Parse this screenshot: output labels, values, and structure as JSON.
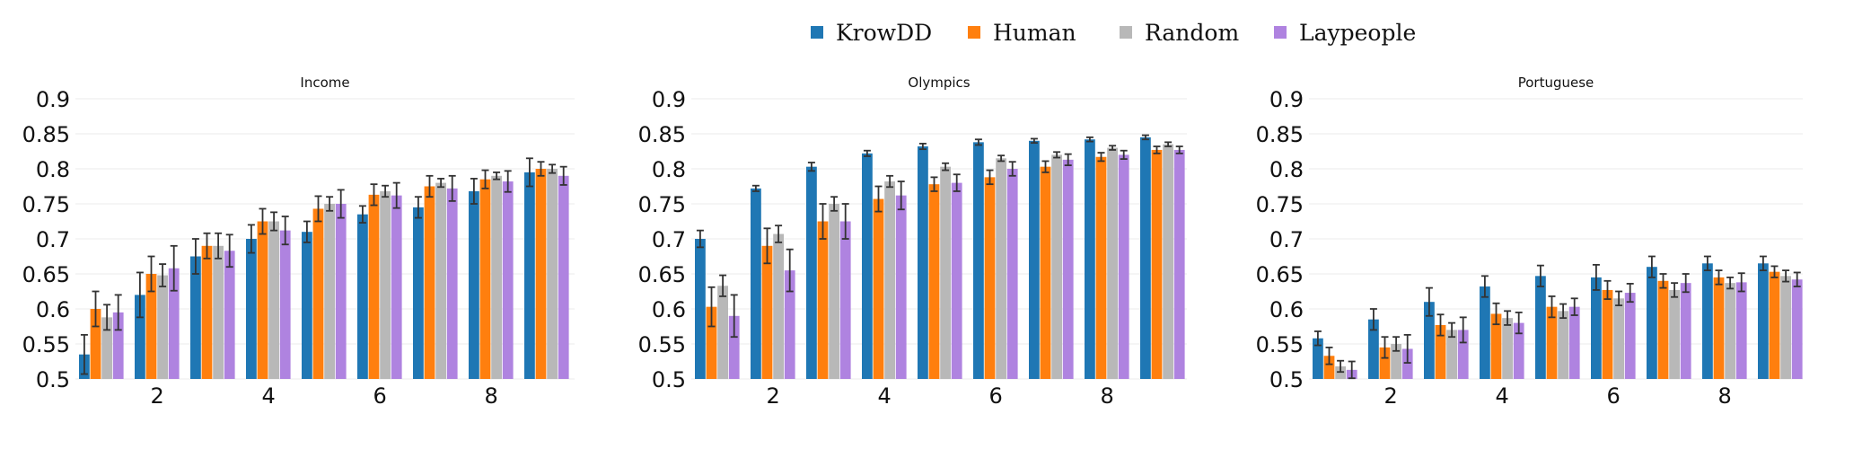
{
  "legend": {
    "entries": [
      {
        "name": "KrowDD",
        "color": "#1f77b4"
      },
      {
        "name": "Human",
        "color": "#ff7f0e"
      },
      {
        "name": "Random",
        "color": "#b8b8b8"
      },
      {
        "name": "Laypeople",
        "color": "#af83e0"
      }
    ],
    "placement": "top-center"
  },
  "chart_data": [
    {
      "type": "bar",
      "title": "Income",
      "xlabel": "",
      "ylabel": "",
      "ylim": [
        0.5,
        0.9
      ],
      "yticks": [
        "0.5",
        "0.55",
        "0.6",
        "0.65",
        "0.7",
        "0.75",
        "0.8",
        "0.85",
        "0.9"
      ],
      "xticks": [
        "2",
        "4",
        "6",
        "8"
      ],
      "grid": true,
      "categories": [
        1,
        2,
        3,
        4,
        5,
        6,
        7,
        8,
        9
      ],
      "series": [
        {
          "name": "KrowDD",
          "values": [
            0.535,
            0.62,
            0.675,
            0.7,
            0.71,
            0.735,
            0.745,
            0.768,
            0.795
          ],
          "errors": [
            0.028,
            0.032,
            0.025,
            0.02,
            0.015,
            0.012,
            0.015,
            0.018,
            0.02
          ]
        },
        {
          "name": "Human",
          "values": [
            0.6,
            0.65,
            0.69,
            0.725,
            0.743,
            0.763,
            0.775,
            0.785,
            0.8
          ],
          "errors": [
            0.025,
            0.025,
            0.018,
            0.018,
            0.018,
            0.015,
            0.015,
            0.013,
            0.01
          ]
        },
        {
          "name": "Random",
          "values": [
            0.588,
            0.648,
            0.69,
            0.725,
            0.75,
            0.768,
            0.78,
            0.79,
            0.8
          ],
          "errors": [
            0.018,
            0.016,
            0.018,
            0.013,
            0.01,
            0.008,
            0.006,
            0.005,
            0.006
          ]
        },
        {
          "name": "Laypeople",
          "values": [
            0.595,
            0.658,
            0.683,
            0.712,
            0.75,
            0.762,
            0.772,
            0.782,
            0.79
          ],
          "errors": [
            0.025,
            0.032,
            0.023,
            0.02,
            0.02,
            0.018,
            0.018,
            0.015,
            0.013
          ]
        }
      ]
    },
    {
      "type": "bar",
      "title": "Olympics",
      "xlabel": "",
      "ylabel": "",
      "ylim": [
        0.5,
        0.9
      ],
      "yticks": [
        "0.5",
        "0.55",
        "0.6",
        "0.65",
        "0.7",
        "0.75",
        "0.8",
        "0.85",
        "0.9"
      ],
      "xticks": [
        "2",
        "4",
        "6",
        "8"
      ],
      "grid": true,
      "categories": [
        1,
        2,
        3,
        4,
        5,
        6,
        7,
        8,
        9
      ],
      "series": [
        {
          "name": "KrowDD",
          "values": [
            0.7,
            0.772,
            0.803,
            0.822,
            0.832,
            0.838,
            0.84,
            0.842,
            0.845
          ],
          "errors": [
            0.012,
            0.004,
            0.006,
            0.004,
            0.004,
            0.004,
            0.003,
            0.003,
            0.003
          ]
        },
        {
          "name": "Human",
          "values": [
            0.603,
            0.69,
            0.725,
            0.757,
            0.778,
            0.788,
            0.803,
            0.817,
            0.827
          ],
          "errors": [
            0.028,
            0.025,
            0.025,
            0.018,
            0.01,
            0.01,
            0.008,
            0.006,
            0.005
          ]
        },
        {
          "name": "Random",
          "values": [
            0.633,
            0.707,
            0.75,
            0.782,
            0.803,
            0.815,
            0.82,
            0.83,
            0.835
          ],
          "errors": [
            0.015,
            0.012,
            0.01,
            0.008,
            0.005,
            0.004,
            0.004,
            0.003,
            0.003
          ]
        },
        {
          "name": "Laypeople",
          "values": [
            0.59,
            0.655,
            0.725,
            0.762,
            0.78,
            0.8,
            0.813,
            0.82,
            0.827
          ],
          "errors": [
            0.03,
            0.03,
            0.025,
            0.02,
            0.012,
            0.01,
            0.008,
            0.006,
            0.005
          ]
        }
      ]
    },
    {
      "type": "bar",
      "title": "Portuguese",
      "xlabel": "",
      "ylabel": "",
      "ylim": [
        0.5,
        0.9
      ],
      "yticks": [
        "0.5",
        "0.55",
        "0.6",
        "0.65",
        "0.7",
        "0.75",
        "0.8",
        "0.85",
        "0.9"
      ],
      "xticks": [
        "2",
        "4",
        "6",
        "8"
      ],
      "grid": true,
      "categories": [
        1,
        2,
        3,
        4,
        5,
        6,
        7,
        8,
        9
      ],
      "series": [
        {
          "name": "KrowDD",
          "values": [
            0.558,
            0.585,
            0.61,
            0.632,
            0.647,
            0.645,
            0.66,
            0.665,
            0.665
          ],
          "errors": [
            0.01,
            0.015,
            0.02,
            0.015,
            0.015,
            0.018,
            0.015,
            0.01,
            0.01
          ]
        },
        {
          "name": "Human",
          "values": [
            0.533,
            0.545,
            0.577,
            0.593,
            0.603,
            0.627,
            0.64,
            0.645,
            0.653
          ],
          "errors": [
            0.012,
            0.015,
            0.015,
            0.015,
            0.015,
            0.013,
            0.01,
            0.01,
            0.008
          ]
        },
        {
          "name": "Random",
          "values": [
            0.518,
            0.55,
            0.57,
            0.587,
            0.597,
            0.615,
            0.627,
            0.637,
            0.647
          ],
          "errors": [
            0.008,
            0.01,
            0.01,
            0.01,
            0.01,
            0.01,
            0.01,
            0.008,
            0.008
          ]
        },
        {
          "name": "Laypeople",
          "values": [
            0.513,
            0.543,
            0.57,
            0.58,
            0.603,
            0.623,
            0.637,
            0.638,
            0.642
          ],
          "errors": [
            0.012,
            0.02,
            0.018,
            0.015,
            0.012,
            0.013,
            0.013,
            0.013,
            0.01
          ]
        }
      ]
    }
  ]
}
